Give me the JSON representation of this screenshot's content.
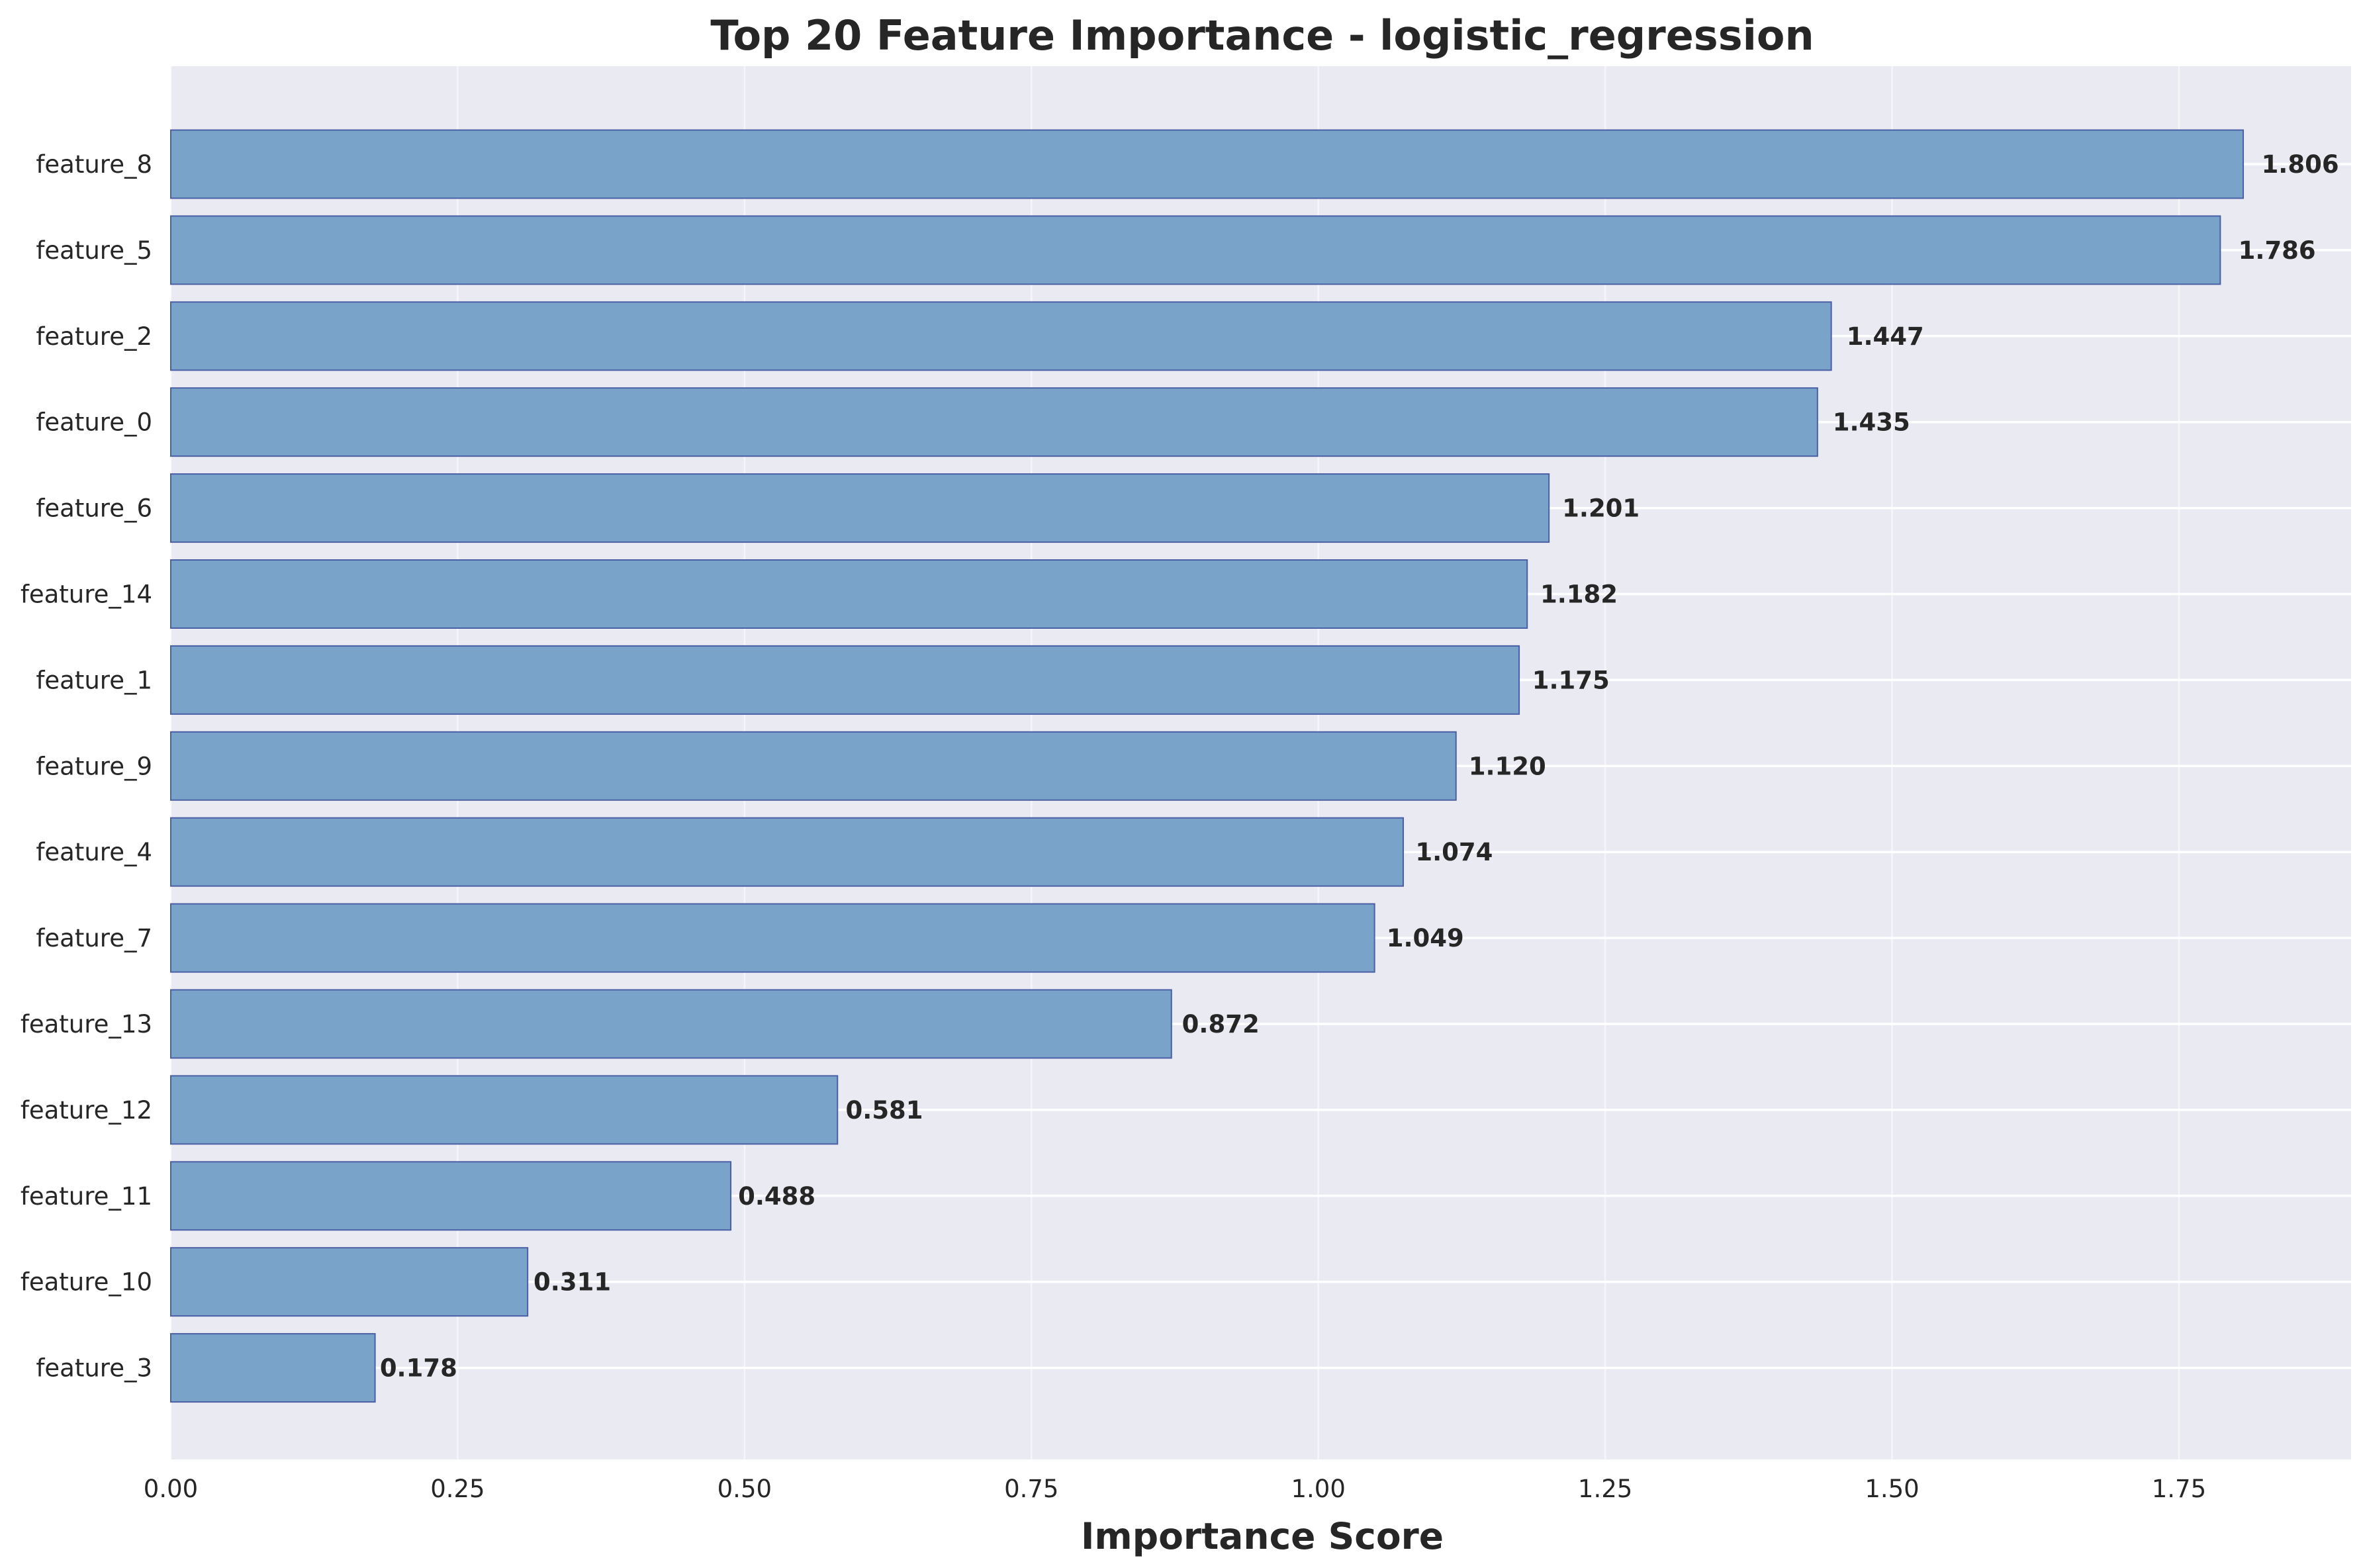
{
  "chart_data": {
    "type": "bar",
    "orientation": "horizontal",
    "title": "Top 20 Feature Importance - logistic_regression",
    "xlabel": "Importance Score",
    "ylabel": "",
    "xlim": [
      0,
      1.9
    ],
    "x_ticks": [
      "0.00",
      "0.25",
      "0.50",
      "0.75",
      "1.00",
      "1.25",
      "1.50",
      "1.75"
    ],
    "x_tick_values": [
      0,
      0.25,
      0.5,
      0.75,
      1.0,
      1.25,
      1.5,
      1.75
    ],
    "grid": true,
    "categories": [
      "feature_8",
      "feature_5",
      "feature_2",
      "feature_0",
      "feature_6",
      "feature_14",
      "feature_1",
      "feature_9",
      "feature_4",
      "feature_7",
      "feature_13",
      "feature_12",
      "feature_11",
      "feature_10",
      "feature_3"
    ],
    "values": [
      1.806,
      1.786,
      1.447,
      1.435,
      1.201,
      1.182,
      1.175,
      1.12,
      1.074,
      1.049,
      0.872,
      0.581,
      0.488,
      0.311,
      0.178
    ],
    "value_labels": [
      "1.806",
      "1.786",
      "1.447",
      "1.435",
      "1.201",
      "1.182",
      "1.175",
      "1.120",
      "1.074",
      "1.049",
      "0.872",
      "0.581",
      "0.488",
      "0.311",
      "0.178"
    ],
    "colors": {
      "bar_fill": "#7aa3c9",
      "bar_edge": "#4a5fa5",
      "plot_background": "#eaeaf2",
      "grid": "#ffffff",
      "text": "#262626"
    }
  }
}
